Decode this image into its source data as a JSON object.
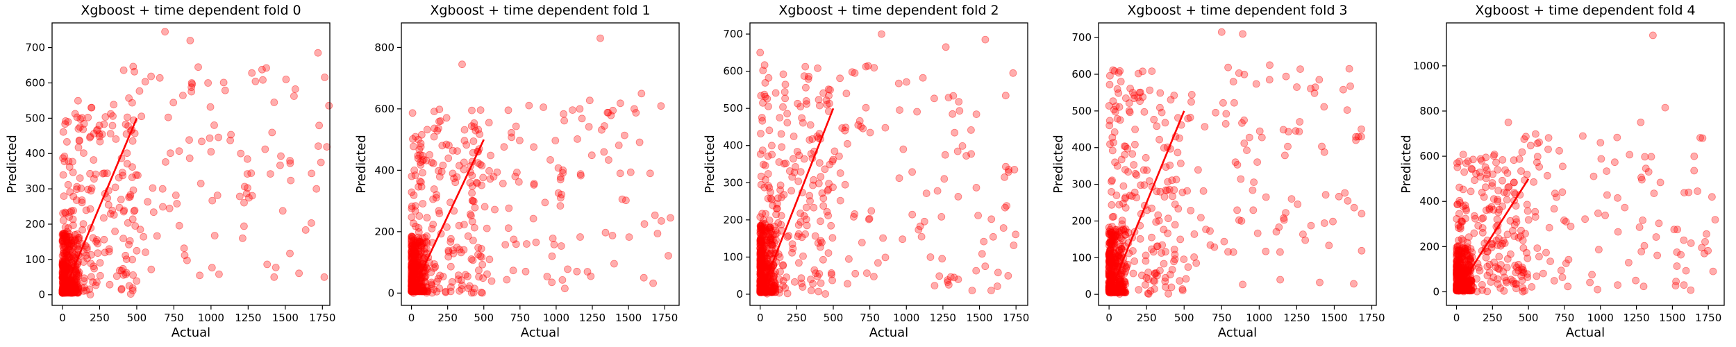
{
  "chart_data": [
    {
      "type": "scatter",
      "title": "Xgboost + time dependent fold 0",
      "xlabel": "Actual",
      "ylabel": "Predicted",
      "xlim": [
        -70,
        1800
      ],
      "ylim": [
        -30,
        770
      ],
      "xticks": [
        0,
        250,
        500,
        750,
        1000,
        1250,
        1500,
        1750
      ],
      "yticks": [
        0,
        100,
        200,
        300,
        400,
        500,
        600,
        700
      ],
      "reference_line": {
        "x": [
          0,
          500
        ],
        "y": [
          0,
          500
        ]
      },
      "seed": 11,
      "bulk": {
        "n": 320,
        "xmax": 110,
        "ymax": 170
      },
      "mid": {
        "n": 200,
        "xmin": 0,
        "xmax": 500,
        "ymin": 0,
        "ymax": 560
      },
      "wide": {
        "n": 110,
        "xmin": 400,
        "xmax": 1800,
        "ymin": 50,
        "ymax": 650
      },
      "points": [
        [
          690,
          745
        ],
        [
          860,
          720
        ],
        [
          1720,
          685
        ],
        [
          1505,
          610
        ],
        [
          1275,
          628
        ],
        [
          1425,
          545
        ],
        [
          1740,
          375
        ],
        [
          1425,
          50
        ],
        [
          1200,
          400
        ],
        [
          1000,
          405
        ],
        [
          980,
          600
        ],
        [
          870,
          600
        ]
      ]
    },
    {
      "type": "scatter",
      "title": "Xgboost + time dependent fold 1",
      "xlabel": "Actual",
      "ylabel": "Predicted",
      "xlim": [
        -70,
        1850
      ],
      "ylim": [
        -40,
        880
      ],
      "xticks": [
        0,
        250,
        500,
        750,
        1000,
        1250,
        1500,
        1750
      ],
      "yticks": [
        0,
        200,
        400,
        600,
        800
      ],
      "reference_line": {
        "x": [
          0,
          500
        ],
        "y": [
          0,
          500
        ]
      },
      "seed": 23,
      "bulk": {
        "n": 320,
        "xmax": 110,
        "ymax": 180
      },
      "mid": {
        "n": 200,
        "xmin": 0,
        "xmax": 500,
        "ymin": 0,
        "ymax": 600
      },
      "wide": {
        "n": 110,
        "xmin": 400,
        "xmax": 1800,
        "ymin": 20,
        "ymax": 640
      },
      "points": [
        [
          1305,
          830
        ],
        [
          350,
          745
        ],
        [
          1590,
          650
        ],
        [
          1790,
          245
        ],
        [
          1540,
          600
        ],
        [
          1060,
          15
        ],
        [
          970,
          35
        ],
        [
          1650,
          390
        ]
      ]
    },
    {
      "type": "scatter",
      "title": "Xgboost + time dependent fold 2",
      "xlabel": "Actual",
      "ylabel": "Predicted",
      "xlim": [
        -70,
        1830
      ],
      "ylim": [
        -30,
        730
      ],
      "xticks": [
        0,
        250,
        500,
        750,
        1000,
        1250,
        1500,
        1750
      ],
      "yticks": [
        0,
        100,
        200,
        300,
        400,
        500,
        600,
        700
      ],
      "reference_line": {
        "x": [
          0,
          500
        ],
        "y": [
          0,
          500
        ]
      },
      "seed": 37,
      "bulk": {
        "n": 330,
        "xmax": 110,
        "ymax": 180
      },
      "mid": {
        "n": 210,
        "xmin": 0,
        "xmax": 500,
        "ymin": 0,
        "ymax": 620
      },
      "wide": {
        "n": 110,
        "xmin": 400,
        "xmax": 1750,
        "ymin": 20,
        "ymax": 620
      },
      "points": [
        [
          830,
          700
        ],
        [
          1540,
          685
        ],
        [
          1730,
          595
        ],
        [
          1700,
          335
        ],
        [
          1580,
          10
        ],
        [
          0,
          650
        ],
        [
          1270,
          665
        ],
        [
          1450,
          10
        ]
      ]
    },
    {
      "type": "scatter",
      "title": "Xgboost + time dependent fold 3",
      "xlabel": "Actual",
      "ylabel": "Predicted",
      "xlim": [
        -70,
        1780
      ],
      "ylim": [
        -30,
        740
      ],
      "xticks": [
        0,
        250,
        500,
        750,
        1000,
        1250,
        1500,
        1750
      ],
      "yticks": [
        0,
        100,
        200,
        300,
        400,
        500,
        600,
        700
      ],
      "reference_line": {
        "x": [
          0,
          500
        ],
        "y": [
          0,
          500
        ]
      },
      "seed": 53,
      "bulk": {
        "n": 330,
        "xmax": 110,
        "ymax": 180
      },
      "mid": {
        "n": 200,
        "xmin": 0,
        "xmax": 500,
        "ymin": 0,
        "ymax": 620
      },
      "wide": {
        "n": 110,
        "xmin": 400,
        "xmax": 1700,
        "ymin": 20,
        "ymax": 620
      },
      "points": [
        [
          750,
          715
        ],
        [
          890,
          710
        ],
        [
          1660,
          430
        ],
        [
          1680,
          430
        ],
        [
          1600,
          615
        ],
        [
          1590,
          255
        ],
        [
          1400,
          585
        ],
        [
          1140,
          40
        ],
        [
          1070,
          625
        ]
      ]
    },
    {
      "type": "scatter",
      "title": "Xgboost + time dependent fold 4",
      "xlabel": "Actual",
      "ylabel": "Predicted",
      "xlim": [
        -70,
        1860
      ],
      "ylim": [
        -60,
        1190
      ],
      "xticks": [
        0,
        250,
        500,
        750,
        1000,
        1250,
        1500,
        1750
      ],
      "yticks": [
        0,
        200,
        400,
        600,
        800,
        1000
      ],
      "reference_line": {
        "x": [
          0,
          500
        ],
        "y": [
          0,
          500
        ]
      },
      "seed": 71,
      "bulk": {
        "n": 320,
        "xmax": 110,
        "ymax": 200
      },
      "mid": {
        "n": 200,
        "xmin": 0,
        "xmax": 500,
        "ymin": 0,
        "ymax": 620
      },
      "wide": {
        "n": 110,
        "xmin": 400,
        "xmax": 1800,
        "ymin": 0,
        "ymax": 700
      },
      "points": [
        [
          1365,
          1135
        ],
        [
          1450,
          815
        ],
        [
          1710,
          680
        ],
        [
          1775,
          420
        ],
        [
          1280,
          750
        ],
        [
          1000,
          660
        ],
        [
          980,
          10
        ],
        [
          1120,
          30
        ],
        [
          1580,
          30
        ],
        [
          360,
          750
        ]
      ]
    }
  ]
}
